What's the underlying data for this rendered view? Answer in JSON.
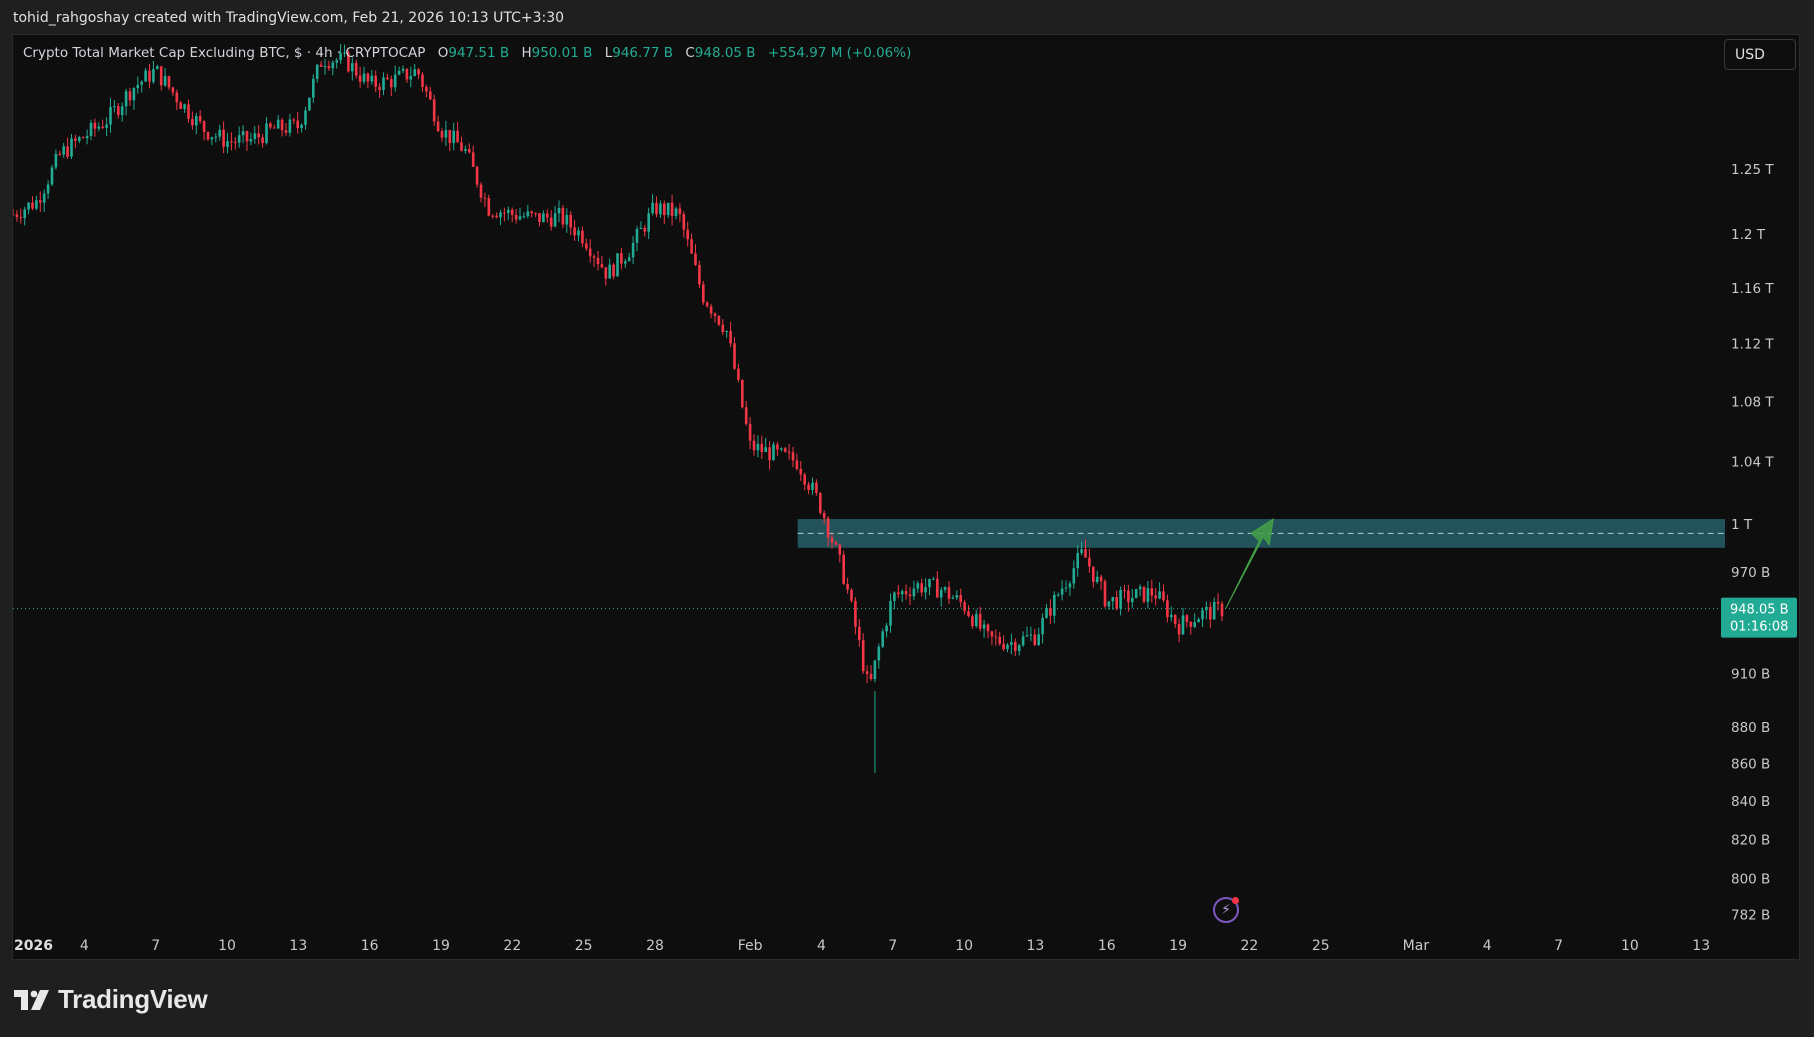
{
  "header": {
    "attribution": "tohid_rahgoshay created with TradingView.com, Feb 21, 2026 10:13 UTC+3:30"
  },
  "legend": {
    "title": "Crypto Total Market Cap Excluding BTC, $ · 4h · CRYPTOCAP",
    "open_label": "O",
    "open": "947.51 B",
    "high_label": "H",
    "high": "950.01 B",
    "low_label": "L",
    "low": "946.77 B",
    "close_label": "C",
    "close": "948.05 B",
    "change": "+554.97 M (+0.06%)"
  },
  "currency_button": "USD",
  "price_tag": {
    "price": "948.05 B",
    "countdown": "01:16:08"
  },
  "brand": "TradingView",
  "alert_icon": "lightning-icon",
  "colors": {
    "up": "#22ab94",
    "down": "#f23645",
    "zone": "#2a6b74",
    "arrow": "#43a047",
    "background": "#0e0e0e"
  },
  "chart_data": {
    "type": "candlestick",
    "title": "Crypto Total Market Cap Excluding BTC, $ · 4h · CRYPTOCAP",
    "interval": "4h",
    "currency": "USD",
    "y_scale": "log",
    "ylim_billions": [
      775,
      1360
    ],
    "y_tick_labels": [
      "1.25 T",
      "1.2 T",
      "1.16 T",
      "1.12 T",
      "1.08 T",
      "1.04 T",
      "1 T",
      "970 B",
      "910 B",
      "880 B",
      "860 B",
      "840 B",
      "820 B",
      "800 B",
      "782 B"
    ],
    "y_ticks_billions": [
      1250,
      1200,
      1160,
      1120,
      1080,
      1040,
      1000,
      970,
      910,
      880,
      860,
      840,
      820,
      800,
      782
    ],
    "x_tick_labels": [
      "2026",
      "4",
      "7",
      "10",
      "13",
      "16",
      "19",
      "22",
      "25",
      "28",
      "Feb",
      "4",
      "7",
      "10",
      "13",
      "16",
      "19",
      "22",
      "25",
      "Mar",
      "4",
      "7",
      "10",
      "13"
    ],
    "x_ticks": [
      "2026-01-01",
      "2026-01-04",
      "2026-01-07",
      "2026-01-10",
      "2026-01-13",
      "2026-01-16",
      "2026-01-19",
      "2026-01-22",
      "2026-01-25",
      "2026-01-28",
      "2026-02-01",
      "2026-02-04",
      "2026-02-07",
      "2026-02-10",
      "2026-02-13",
      "2026-02-16",
      "2026-02-19",
      "2026-02-22",
      "2026-02-25",
      "2026-03-01",
      "2026-03-04",
      "2026-03-07",
      "2026-03-10",
      "2026-03-13"
    ],
    "x_range": [
      "2026-01-01",
      "2026-03-14"
    ],
    "price_path": [
      {
        "date": "2026-01-01",
        "close": 1215
      },
      {
        "date": "2026-01-02",
        "close": 1225
      },
      {
        "date": "2026-01-03",
        "close": 1262
      },
      {
        "date": "2026-01-04",
        "close": 1276
      },
      {
        "date": "2026-01-05",
        "close": 1290
      },
      {
        "date": "2026-01-06",
        "close": 1315
      },
      {
        "date": "2026-01-07",
        "close": 1330
      },
      {
        "date": "2026-01-08",
        "close": 1305
      },
      {
        "date": "2026-01-09",
        "close": 1282
      },
      {
        "date": "2026-01-10",
        "close": 1272
      },
      {
        "date": "2026-01-11",
        "close": 1273
      },
      {
        "date": "2026-01-12",
        "close": 1282
      },
      {
        "date": "2026-01-13",
        "close": 1284
      },
      {
        "date": "2026-01-14",
        "close": 1340
      },
      {
        "date": "2026-01-15",
        "close": 1338
      },
      {
        "date": "2026-01-16",
        "close": 1318
      },
      {
        "date": "2026-01-17",
        "close": 1322
      },
      {
        "date": "2026-01-18",
        "close": 1330
      },
      {
        "date": "2026-01-19",
        "close": 1282
      },
      {
        "date": "2026-01-20",
        "close": 1265
      },
      {
        "date": "2026-01-21",
        "close": 1220
      },
      {
        "date": "2026-01-22",
        "close": 1215
      },
      {
        "date": "2026-01-23",
        "close": 1212
      },
      {
        "date": "2026-01-24",
        "close": 1213
      },
      {
        "date": "2026-01-25",
        "close": 1198
      },
      {
        "date": "2026-01-26",
        "close": 1170
      },
      {
        "date": "2026-01-27",
        "close": 1190
      },
      {
        "date": "2026-01-28",
        "close": 1220
      },
      {
        "date": "2026-01-29",
        "close": 1215
      },
      {
        "date": "2026-01-30",
        "close": 1155
      },
      {
        "date": "2026-01-31",
        "close": 1130
      },
      {
        "date": "2026-02-01",
        "close": 1050
      },
      {
        "date": "2026-02-02",
        "close": 1045
      },
      {
        "date": "2026-02-03",
        "close": 1040
      },
      {
        "date": "2026-02-04",
        "close": 1010
      },
      {
        "date": "2026-02-05",
        "close": 965
      },
      {
        "date": "2026-02-06",
        "close": 900
      },
      {
        "date": "2026-02-06T12:00",
        "close": 930
      },
      {
        "date": "2026-02-07",
        "close": 955
      },
      {
        "date": "2026-02-08",
        "close": 962
      },
      {
        "date": "2026-02-09",
        "close": 960
      },
      {
        "date": "2026-02-10",
        "close": 950
      },
      {
        "date": "2026-02-11",
        "close": 930
      },
      {
        "date": "2026-02-12",
        "close": 928
      },
      {
        "date": "2026-02-13",
        "close": 932
      },
      {
        "date": "2026-02-14",
        "close": 958
      },
      {
        "date": "2026-02-15",
        "close": 982
      },
      {
        "date": "2026-02-16",
        "close": 952
      },
      {
        "date": "2026-02-17",
        "close": 955
      },
      {
        "date": "2026-02-18",
        "close": 958
      },
      {
        "date": "2026-02-19",
        "close": 938
      },
      {
        "date": "2026-02-20",
        "close": 945
      },
      {
        "date": "2026-02-21",
        "close": 948
      }
    ],
    "current_price": 948.05,
    "resistance_zone": {
      "from": "2026-02-03",
      "to": "2026-03-14",
      "high_billions": 1003,
      "low_billions": 985,
      "midline_billions": 994
    },
    "projection_arrow": {
      "from_date": "2026-02-21",
      "from_billions": 948,
      "to_date": "2026-02-23",
      "to_billions": 1003
    }
  }
}
